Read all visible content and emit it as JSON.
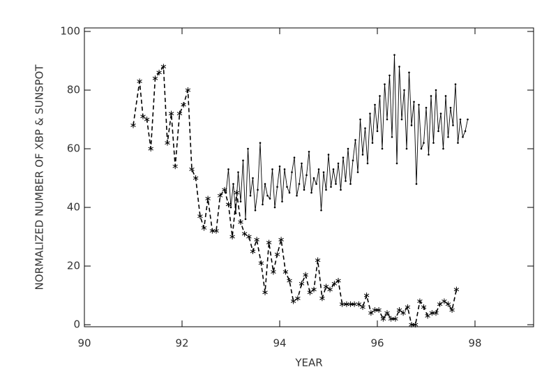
{
  "chart_data": {
    "type": "line",
    "xlabel": "YEAR",
    "ylabel": "NORMALIZED NUMBER OF XBP & SUNSPOT",
    "xlim": [
      90,
      99.2
    ],
    "ylim": [
      -0.7,
      101.2
    ],
    "xticks": [
      90,
      92,
      94,
      96,
      98
    ],
    "yticks": [
      0,
      20,
      40,
      60,
      80,
      100
    ],
    "series": [
      {
        "color": "#000000",
        "line_style": "dashed",
        "marker": "asterisk",
        "x": [
          91.0,
          91.13,
          91.2,
          91.28,
          91.36,
          91.45,
          91.53,
          91.62,
          91.7,
          91.78,
          91.86,
          91.95,
          92.03,
          92.12,
          92.2,
          92.28,
          92.37,
          92.45,
          92.53,
          92.62,
          92.7,
          92.78,
          92.87,
          92.95,
          93.03,
          93.12,
          93.2,
          93.28,
          93.37,
          93.45,
          93.53,
          93.62,
          93.7,
          93.78,
          93.87,
          93.95,
          94.03,
          94.12,
          94.2,
          94.28,
          94.37,
          94.45,
          94.53,
          94.62,
          94.7,
          94.78,
          94.87,
          94.95,
          95.03,
          95.12,
          95.2,
          95.28,
          95.37,
          95.45,
          95.53,
          95.62,
          95.7,
          95.78,
          95.87,
          95.95,
          96.03,
          96.12,
          96.2,
          96.28,
          96.37,
          96.45,
          96.53,
          96.62,
          96.7,
          96.78,
          96.87,
          96.95,
          97.03,
          97.12,
          97.2,
          97.28,
          97.37,
          97.45,
          97.53,
          97.62
        ],
        "values": [
          68,
          83,
          71,
          70,
          60,
          84,
          86,
          88,
          62,
          72,
          54,
          72,
          75,
          80,
          53,
          50,
          37,
          33,
          43,
          32,
          32,
          44,
          46,
          41,
          30,
          45,
          35,
          31,
          30,
          25,
          29,
          21,
          11,
          28,
          18,
          24,
          29,
          18,
          15,
          8,
          9,
          14,
          17,
          11,
          12,
          22,
          9,
          13,
          12,
          14,
          15,
          7,
          7,
          7,
          7,
          7,
          6,
          10,
          4,
          5,
          5,
          2,
          4,
          2,
          2,
          5,
          4,
          6,
          0,
          0,
          8,
          6,
          3,
          4,
          4,
          7,
          8,
          7,
          5,
          12
        ]
      },
      {
        "color": "#000000",
        "line_style": "solid",
        "marker": "dot",
        "x": [
          92.9,
          92.95,
          93.0,
          93.05,
          93.1,
          93.15,
          93.2,
          93.25,
          93.3,
          93.35,
          93.4,
          93.45,
          93.5,
          93.55,
          93.6,
          93.65,
          93.7,
          93.75,
          93.8,
          93.85,
          93.9,
          93.95,
          94.0,
          94.05,
          94.1,
          94.15,
          94.2,
          94.25,
          94.3,
          94.35,
          94.4,
          94.45,
          94.5,
          94.55,
          94.6,
          94.65,
          94.7,
          94.75,
          94.8,
          94.85,
          94.9,
          94.95,
          95.0,
          95.05,
          95.1,
          95.15,
          95.2,
          95.25,
          95.3,
          95.35,
          95.4,
          95.45,
          95.5,
          95.55,
          95.6,
          95.65,
          95.7,
          95.75,
          95.8,
          95.85,
          95.9,
          95.95,
          96.0,
          96.05,
          96.1,
          96.15,
          96.2,
          96.25,
          96.3,
          96.35,
          96.4,
          96.45,
          96.5,
          96.55,
          96.6,
          96.65,
          96.7,
          96.75,
          96.8,
          96.85,
          96.9,
          96.95,
          97.0,
          97.05,
          97.1,
          97.15,
          97.2,
          97.25,
          97.3,
          97.35,
          97.4,
          97.45,
          97.5,
          97.55,
          97.6,
          97.65,
          97.7,
          97.75,
          97.8,
          97.85
        ],
        "values": [
          45,
          53,
          40,
          48,
          38,
          52,
          42,
          56,
          36,
          60,
          44,
          50,
          39,
          46,
          62,
          41,
          48,
          44,
          43,
          53,
          40,
          47,
          54,
          42,
          53,
          47,
          45,
          52,
          57,
          44,
          48,
          55,
          46,
          51,
          59,
          45,
          50,
          48,
          53,
          39,
          52,
          46,
          58,
          47,
          53,
          48,
          55,
          46,
          57,
          49,
          60,
          48,
          56,
          63,
          52,
          70,
          58,
          67,
          55,
          72,
          62,
          75,
          66,
          78,
          60,
          82,
          70,
          85,
          64,
          92,
          55,
          88,
          70,
          80,
          60,
          86,
          68,
          76,
          48,
          75,
          60,
          62,
          74,
          58,
          78,
          62,
          80,
          66,
          72,
          60,
          78,
          64,
          74,
          68,
          82,
          62,
          70,
          64,
          66,
          70
        ]
      }
    ]
  }
}
